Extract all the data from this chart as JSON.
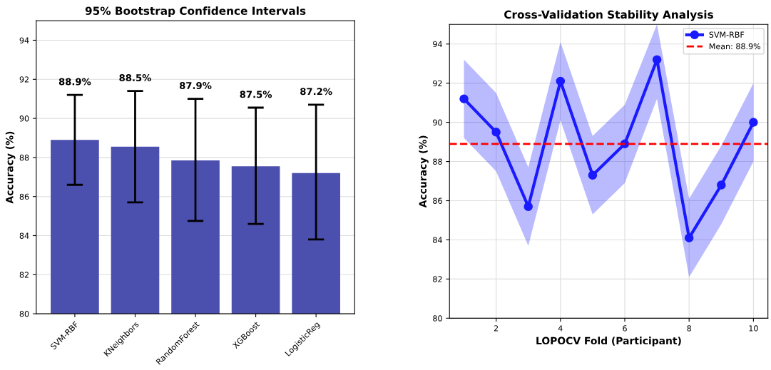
{
  "chart_data": [
    {
      "type": "bar",
      "title": "95% Bootstrap Confidence Intervals",
      "ylabel": "Accuracy (%)",
      "categories": [
        "SVM-RBF",
        "KNeighbors",
        "RandomForest",
        "XGBoost",
        "LogisticReg"
      ],
      "values": [
        88.9,
        88.55,
        87.85,
        87.55,
        87.2
      ],
      "errors": [
        [
          86.6,
          91.2
        ],
        [
          85.7,
          91.4
        ],
        [
          84.75,
          91.0
        ],
        [
          84.6,
          90.55
        ],
        [
          83.8,
          90.7
        ]
      ],
      "annotations": [
        {
          "text": "88.9%",
          "x": "SVM-RBF",
          "y": 91.2
        },
        {
          "text": "88.5%",
          "x": "KNeighbors",
          "y": 91.4
        },
        {
          "text": "87.9%",
          "x": "RandomForest",
          "y": 91.0
        },
        {
          "text": "87.5%",
          "x": "XGBoost",
          "y": 90.55
        },
        {
          "text": "87.2%",
          "x": "LogisticReg",
          "y": 90.7
        }
      ],
      "color": "#4b4fae",
      "ylim": [
        80,
        95
      ],
      "yticks": [
        80,
        82,
        84,
        86,
        88,
        90,
        92,
        94
      ],
      "grid": "y"
    },
    {
      "type": "line",
      "title": "Cross-Validation Stability Analysis",
      "xlabel": "LOPOCV Fold (Participant)",
      "ylabel": "Accuracy (%)",
      "x": [
        1,
        2,
        3,
        4,
        5,
        6,
        7,
        8,
        9,
        10
      ],
      "series": [
        {
          "name": "SVM-RBF",
          "color": "#1a1aff",
          "values": [
            91.2,
            89.5,
            85.7,
            92.1,
            87.3,
            88.9,
            93.2,
            84.1,
            86.8,
            90.0
          ],
          "lower": [
            89.2,
            87.5,
            83.7,
            90.1,
            85.3,
            86.9,
            91.2,
            82.1,
            84.8,
            88.0
          ],
          "upper": [
            93.2,
            91.5,
            87.7,
            94.1,
            89.3,
            90.9,
            95.0,
            86.1,
            88.8,
            92.0
          ]
        }
      ],
      "ref_lines": [
        {
          "axis": "y",
          "value": 88.9,
          "label": "Mean: 88.9%",
          "color": "#ff0000",
          "line_style": "dashed"
        }
      ],
      "marker": "circle",
      "legend": "top right",
      "grid": true,
      "xlim": [
        0.55,
        10.45
      ],
      "xticks": [
        2,
        4,
        6,
        8,
        10
      ],
      "ylim": [
        80,
        95
      ],
      "yticks": [
        80,
        82,
        84,
        86,
        88,
        90,
        92,
        94
      ]
    }
  ]
}
